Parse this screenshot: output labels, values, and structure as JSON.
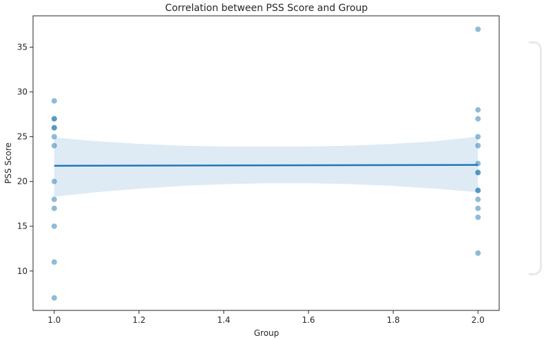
{
  "chart_data": {
    "type": "scatter",
    "title": "Correlation between PSS Score and Group",
    "xlabel": "Group",
    "ylabel": "PSS Score",
    "xlim": [
      0.95,
      2.05
    ],
    "ylim": [
      5.6,
      38.5
    ],
    "xticks": [
      "1.0",
      "1.2",
      "1.4",
      "1.6",
      "1.8",
      "2.0"
    ],
    "xtick_values": [
      1.0,
      1.2,
      1.4,
      1.6,
      1.8,
      2.0
    ],
    "yticks": [
      "10",
      "15",
      "20",
      "25",
      "30",
      "35"
    ],
    "ytick_values": [
      10,
      15,
      20,
      25,
      30,
      35
    ],
    "grid": false,
    "points": [
      {
        "x": 1,
        "y": 29
      },
      {
        "x": 1,
        "y": 27
      },
      {
        "x": 1,
        "y": 27
      },
      {
        "x": 1,
        "y": 26
      },
      {
        "x": 1,
        "y": 26
      },
      {
        "x": 1,
        "y": 25
      },
      {
        "x": 1,
        "y": 24
      },
      {
        "x": 1,
        "y": 20
      },
      {
        "x": 1,
        "y": 18
      },
      {
        "x": 1,
        "y": 17
      },
      {
        "x": 1,
        "y": 15
      },
      {
        "x": 1,
        "y": 11
      },
      {
        "x": 1,
        "y": 7
      },
      {
        "x": 2,
        "y": 37
      },
      {
        "x": 2,
        "y": 28
      },
      {
        "x": 2,
        "y": 27
      },
      {
        "x": 2,
        "y": 25
      },
      {
        "x": 2,
        "y": 24
      },
      {
        "x": 2,
        "y": 22
      },
      {
        "x": 2,
        "y": 21
      },
      {
        "x": 2,
        "y": 21
      },
      {
        "x": 2,
        "y": 19
      },
      {
        "x": 2,
        "y": 19
      },
      {
        "x": 2,
        "y": 18
      },
      {
        "x": 2,
        "y": 17
      },
      {
        "x": 2,
        "y": 16
      },
      {
        "x": 2,
        "y": 12
      }
    ],
    "regression_line": {
      "x": [
        1.0,
        2.0
      ],
      "y": [
        21.75,
        21.85
      ]
    },
    "confidence_band": {
      "x": [
        1.0,
        1.1,
        1.2,
        1.3,
        1.4,
        1.5,
        1.6,
        1.7,
        1.8,
        1.9,
        2.0
      ],
      "upper": [
        24.9,
        24.5,
        24.2,
        24.0,
        23.9,
        23.9,
        23.9,
        24.0,
        24.2,
        24.5,
        25.0
      ],
      "lower": [
        18.3,
        18.8,
        19.2,
        19.5,
        19.7,
        19.8,
        19.8,
        19.7,
        19.5,
        19.2,
        18.8
      ]
    },
    "colors": {
      "point": "#1f77b4",
      "line": "#1f77b4",
      "band": "#1f77b4",
      "axis": "#262626"
    }
  }
}
